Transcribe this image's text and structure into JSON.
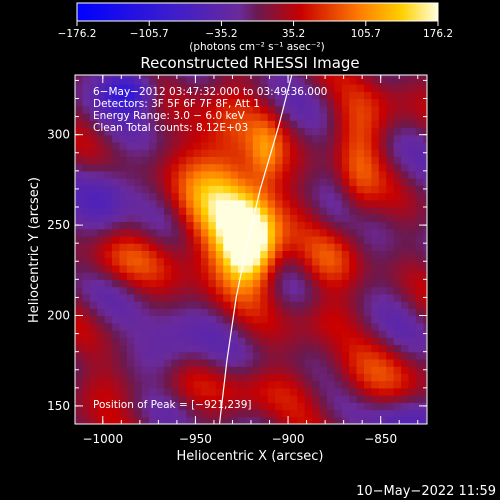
{
  "chart_data": {
    "type": "heatmap",
    "title": "Reconstructed RHESSI Image",
    "xlabel": "Heliocentric X (arcsec)",
    "ylabel": "Heliocentric Y (arcsec)",
    "xlim": [
      -1015,
      -825
    ],
    "ylim": [
      140,
      333
    ],
    "x_ticks": [
      {
        "value": -1000,
        "label": "−1000"
      },
      {
        "value": -950,
        "label": "−950"
      },
      {
        "value": -900,
        "label": "−900"
      },
      {
        "value": -850,
        "label": "−850"
      }
    ],
    "y_ticks": [
      {
        "value": 150,
        "label": "150"
      },
      {
        "value": 200,
        "label": "200"
      },
      {
        "value": 250,
        "label": "250"
      },
      {
        "value": 300,
        "label": "300"
      }
    ],
    "colorbar": {
      "range": [
        -176.2,
        176.2
      ],
      "ticks": [
        {
          "value": -176.2,
          "label": "−176.2"
        },
        {
          "value": -105.7,
          "label": "−105.7"
        },
        {
          "value": -35.2,
          "label": "−35.2"
        },
        {
          "value": 35.2,
          "label": "35.2"
        },
        {
          "value": 105.7,
          "label": "105.7"
        },
        {
          "value": 176.2,
          "label": "176.2"
        }
      ],
      "unit_label": "(photons cm⁻² s⁻¹ asec⁻²)"
    },
    "annotations": [
      "6−May−2012 03:47:32.000  to  03:49:36.000",
      "Detectors: 3F 5F 6F 7F 8F, Att 1",
      "Energy Range: 3.0 − 6.0 keV",
      "Clean     Total counts: 8.12E+03"
    ],
    "peak_label": "Position of Peak = [−921,239]",
    "peak": {
      "x": -921,
      "y": 239,
      "value": 176.2
    },
    "limb_points": [
      [
        -937,
        140
      ],
      [
        -933,
        175
      ],
      [
        -928,
        210
      ],
      [
        -922,
        240
      ],
      [
        -915,
        270
      ],
      [
        -905,
        305
      ],
      [
        -898,
        333
      ]
    ],
    "sources": [
      {
        "x": -921,
        "y": 239,
        "sx": 10,
        "sy": 15,
        "amp": 1.0
      },
      {
        "x": -930,
        "y": 255,
        "sx": 20,
        "sy": 25,
        "amp": 0.55
      },
      {
        "x": -935,
        "y": 285,
        "sx": 14,
        "sy": 30,
        "amp": 0.35
      },
      {
        "x": -912,
        "y": 290,
        "sx": 6,
        "sy": 12,
        "amp": 0.3
      },
      {
        "x": -862,
        "y": 280,
        "sx": 8,
        "sy": 25,
        "amp": 0.3
      },
      {
        "x": -878,
        "y": 230,
        "sx": 10,
        "sy": 12,
        "amp": 0.25
      },
      {
        "x": -990,
        "y": 230,
        "sx": 20,
        "sy": 10,
        "amp": 0.25
      },
      {
        "x": -990,
        "y": 160,
        "sx": 20,
        "sy": 10,
        "amp": 0.2
      },
      {
        "x": -915,
        "y": 160,
        "sx": 25,
        "sy": 10,
        "amp": 0.2
      },
      {
        "x": -850,
        "y": 165,
        "sx": 20,
        "sy": 12,
        "amp": 0.25
      },
      {
        "x": -855,
        "y": 310,
        "sx": 15,
        "sy": 12,
        "amp": 0.25
      },
      {
        "x": -880,
        "y": 200,
        "sx": 12,
        "sy": 10,
        "amp": 0.2
      },
      {
        "x": -985,
        "y": 325,
        "sx": 10,
        "sy": 8,
        "amp": -0.6
      },
      {
        "x": -1000,
        "y": 265,
        "sx": 10,
        "sy": 15,
        "amp": -0.3
      },
      {
        "x": -965,
        "y": 180,
        "sx": 12,
        "sy": 12,
        "amp": -0.3
      },
      {
        "x": -840,
        "y": 140,
        "sx": 12,
        "sy": 10,
        "amp": -0.3
      }
    ]
  },
  "footer": {
    "timestamp": "10−May−2022 11:59"
  }
}
